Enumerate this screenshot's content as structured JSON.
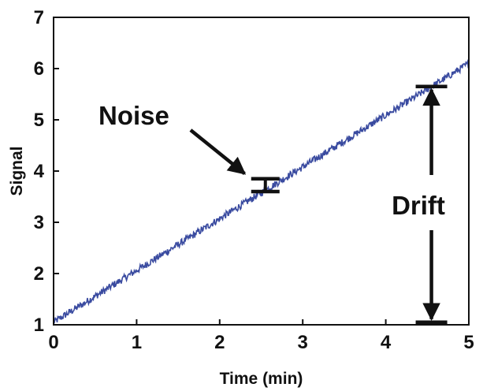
{
  "chart_data": {
    "type": "line",
    "xlabel": "Time (min)",
    "ylabel": "Signal",
    "xlim": [
      0,
      5
    ],
    "ylim": [
      1,
      7
    ],
    "xticks": [
      "0",
      "1",
      "2",
      "3",
      "4",
      "5"
    ],
    "yticks": [
      "1",
      "2",
      "3",
      "4",
      "5",
      "6",
      "7"
    ],
    "grid": false,
    "series": [
      {
        "color": "#3a4ba0",
        "x_start": 0,
        "x_end": 5,
        "y_start": 1.05,
        "y_end": 6.1,
        "noise_amplitude": 0.07
      }
    ],
    "annotations": {
      "noise_label": "Noise",
      "drift_label": "Drift",
      "noise_bar": {
        "x": 2.55,
        "y_low": 3.6,
        "y_high": 3.85
      },
      "noise_arrow": {
        "from": [
          1.65,
          4.8
        ],
        "to": [
          2.3,
          3.95
        ]
      },
      "drift_bar": {
        "x": 4.55,
        "y_low": 1.05,
        "y_high": 5.65
      }
    }
  }
}
